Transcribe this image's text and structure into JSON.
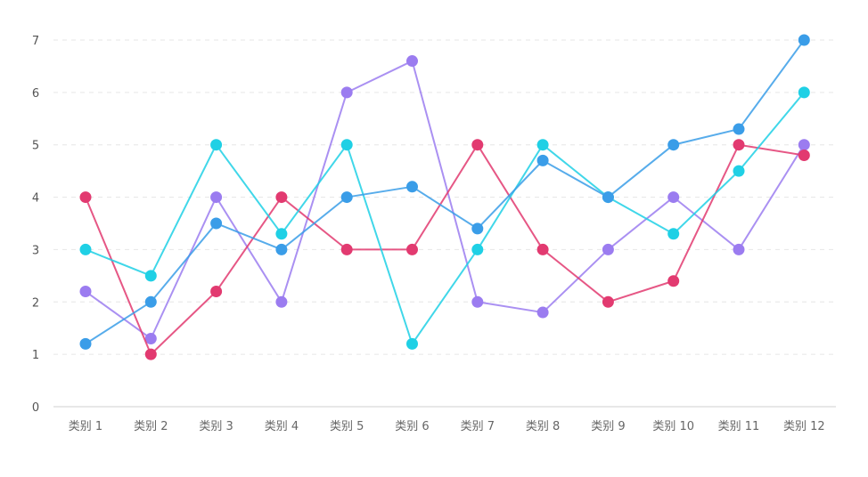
{
  "chart_data": {
    "type": "line",
    "categories": [
      "类别 1",
      "类别 2",
      "类别 3",
      "类别 4",
      "类别 5",
      "类别 6",
      "类别 7",
      "类别 8",
      "类别 9",
      "类别 10",
      "类别 11",
      "类别 12"
    ],
    "ylim": [
      0,
      7
    ],
    "yticks": [
      "0",
      "1",
      "2",
      "3",
      "4",
      "5",
      "6",
      "7"
    ],
    "grid": true,
    "legend": "none",
    "series": [
      {
        "color": "#9b7cf0",
        "values": [
          2.2,
          1.3,
          4,
          2,
          6,
          6.6,
          2,
          1.8,
          3,
          4,
          3,
          5
        ]
      },
      {
        "color": "#e23a70",
        "values": [
          4,
          1,
          2.2,
          4,
          3,
          3,
          5,
          3,
          2,
          2.4,
          5,
          4.8
        ]
      },
      {
        "color": "#1fd0e5",
        "values": [
          3,
          2.5,
          5,
          3.3,
          5,
          1.2,
          3,
          5,
          4,
          3.3,
          4.5,
          6
        ]
      },
      {
        "color": "#3a9de8",
        "values": [
          1.2,
          2,
          3.5,
          3,
          4,
          4.2,
          3.4,
          4.7,
          4,
          5,
          5.3,
          7
        ]
      }
    ]
  }
}
